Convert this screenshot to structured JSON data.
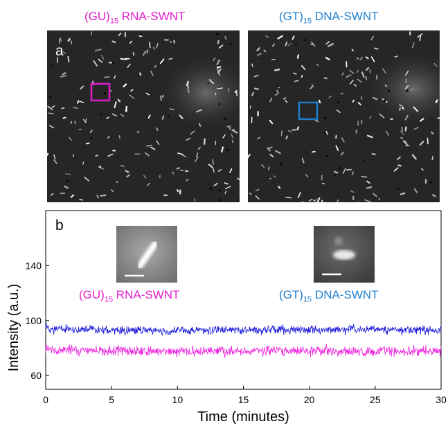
{
  "figure": {
    "panel_a_label": "a",
    "panel_b_label": "b",
    "left": {
      "prefix": "(GU)",
      "sub": "15",
      "suffix": " RNA-SWNT",
      "color": "#e41ccf"
    },
    "right": {
      "prefix": "(GT)",
      "sub": "15",
      "suffix": " DNA-SWNT",
      "color": "#1f7fce"
    }
  },
  "chart_data": {
    "type": "line",
    "xlabel": "Time (minutes)",
    "ylabel": "Intensity (a.u.)",
    "xlim": [
      0,
      30
    ],
    "ylim": [
      50,
      180
    ],
    "xticks": [
      0,
      5,
      10,
      15,
      20,
      25,
      30
    ],
    "yticks": [
      60,
      100,
      140
    ],
    "grid": false,
    "series": [
      {
        "name": "(GT)15 DNA-SWNT",
        "color": "#1a1adc",
        "mean": 93,
        "noise": 2.2,
        "points": [
          [
            0,
            96
          ],
          [
            0.3,
            94
          ],
          [
            5,
            93
          ],
          [
            10,
            92.5
          ],
          [
            15,
            93
          ],
          [
            20,
            93.5
          ],
          [
            25,
            93.5
          ],
          [
            30,
            93
          ]
        ]
      },
      {
        "name": "(GU)15 RNA-SWNT",
        "color": "#ef22e0",
        "mean": 78,
        "noise": 2.6,
        "points": [
          [
            0,
            80
          ],
          [
            0.3,
            79
          ],
          [
            5,
            78
          ],
          [
            10,
            77.5
          ],
          [
            15,
            78
          ],
          [
            20,
            78
          ],
          [
            25,
            77.5
          ],
          [
            30,
            78
          ]
        ]
      }
    ]
  }
}
